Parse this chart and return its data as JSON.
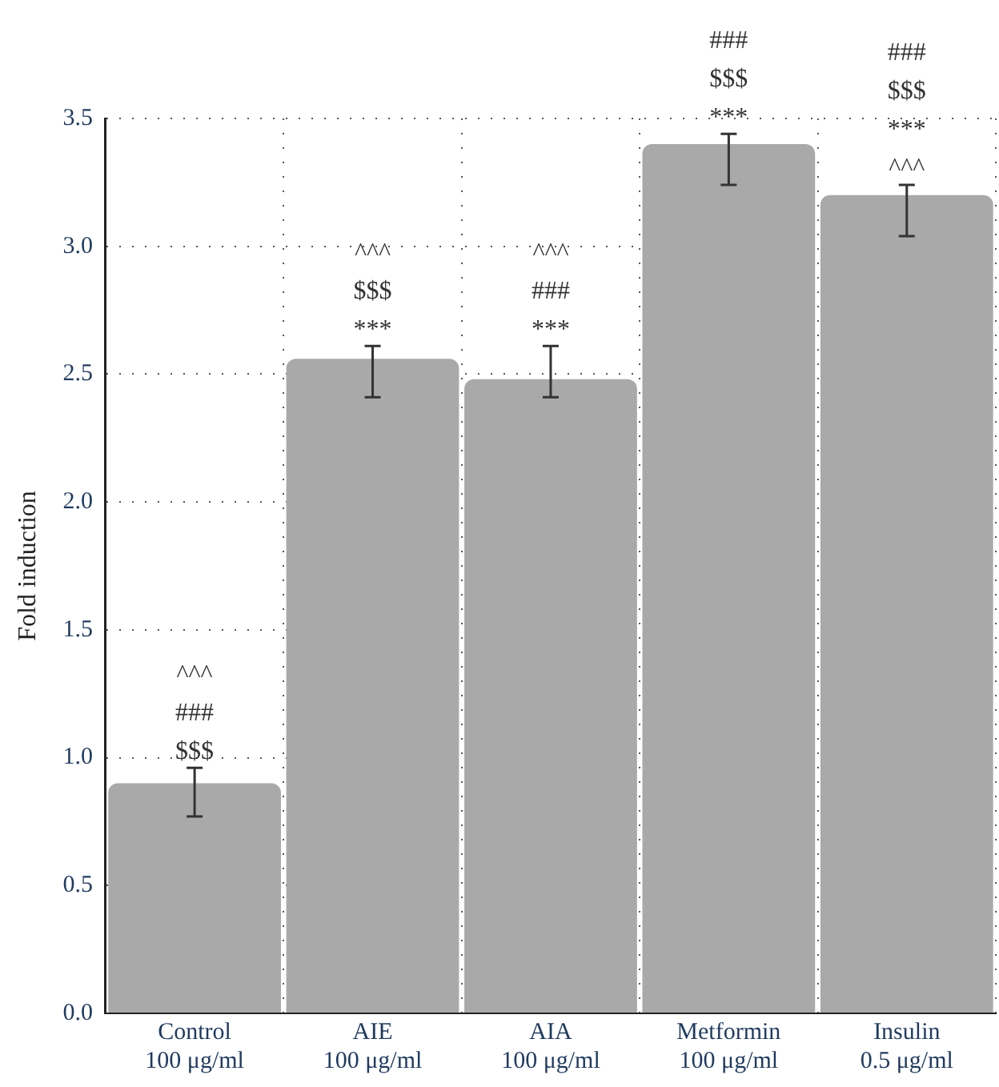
{
  "chart_data": {
    "type": "bar",
    "ylabel": "Fold induction",
    "categories": [
      "Control\n100 μg/ml",
      "AIE\n100 μg/ml",
      "AIA\n100 μg/ml",
      "Metformin\n100 μg/ml",
      "Insulin\n0.5 μg/ml"
    ],
    "values": [
      0.9,
      2.56,
      2.48,
      3.4,
      3.2
    ],
    "color": "#a8a9a8",
    "errors": [
      [
        0.77,
        0.96
      ],
      [
        2.41,
        2.61
      ],
      [
        2.41,
        2.61
      ],
      [
        3.24,
        3.44
      ],
      [
        3.04,
        3.24
      ]
    ],
    "ylim": [
      0,
      3.5
    ],
    "yticks": [
      {
        "value": 0,
        "label": "0.0"
      },
      {
        "value": 0.5,
        "label": "0.5"
      },
      {
        "value": 1,
        "label": "1.0"
      },
      {
        "value": 1.5,
        "label": "1.5"
      },
      {
        "value": 2,
        "label": "2.0"
      },
      {
        "value": 2.5,
        "label": "2.5"
      },
      {
        "value": 3,
        "label": "3.0"
      },
      {
        "value": 3.5,
        "label": "3.5"
      }
    ],
    "grid": true,
    "legend": false,
    "annotations": [
      {
        "text": "^^^\n###\n$$$",
        "x": "Control\n100 μg/ml",
        "y": 0.96
      },
      {
        "text": "^^^\n$$$\n***",
        "x": "AIE\n100 μg/ml",
        "y": 2.61
      },
      {
        "text": "^^^\n###\n***",
        "x": "AIA\n100 μg/ml",
        "y": 2.61
      },
      {
        "text": "###\n$$$\n***",
        "x": "Metformin\n100 μg/ml",
        "y": 3.44
      },
      {
        "text": "###\n$$$\n***\n^^^",
        "x": "Insulin\n0.5 μg/ml",
        "y": 3.24
      }
    ]
  }
}
